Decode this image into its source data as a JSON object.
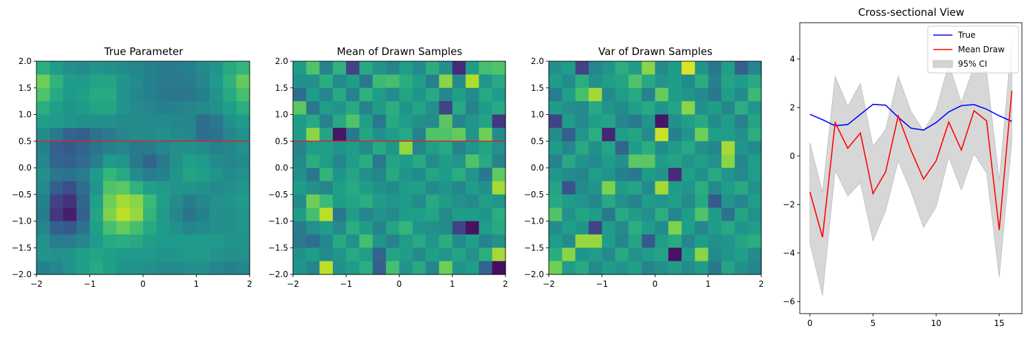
{
  "figure": {
    "panels": [
      {
        "title": "True Parameter"
      },
      {
        "title": "Mean of Drawn Samples"
      },
      {
        "title": "Var of Drawn Samples"
      },
      {
        "title": "Cross-sectional View"
      }
    ]
  },
  "chart_data": [
    {
      "type": "heatmap",
      "title": "True Parameter",
      "xlim": [
        -2,
        2
      ],
      "ylim": [
        -2,
        2
      ],
      "xticks": [
        "−2",
        "−1",
        "0",
        "1",
        "2"
      ],
      "yticks": [
        "−2.0",
        "−1.5",
        "−1.0",
        "−0.5",
        "0.0",
        "0.5",
        "1.0",
        "1.5",
        "2.0"
      ],
      "colormap": "viridis",
      "hline": {
        "y": 0.5,
        "color": "#d62728"
      },
      "grid_rows_top_to_bottom": [
        [
          0.62,
          0.55,
          0.5,
          0.48,
          0.52,
          0.5,
          0.48,
          0.46,
          0.44,
          0.42,
          0.42,
          0.44,
          0.48,
          0.52,
          0.6,
          0.66
        ],
        [
          0.78,
          0.64,
          0.55,
          0.54,
          0.58,
          0.58,
          0.52,
          0.48,
          0.44,
          0.42,
          0.4,
          0.42,
          0.46,
          0.54,
          0.64,
          0.76
        ],
        [
          0.72,
          0.6,
          0.54,
          0.56,
          0.6,
          0.6,
          0.52,
          0.46,
          0.44,
          0.4,
          0.38,
          0.4,
          0.44,
          0.52,
          0.6,
          0.7
        ],
        [
          0.62,
          0.56,
          0.52,
          0.54,
          0.58,
          0.58,
          0.52,
          0.48,
          0.46,
          0.44,
          0.44,
          0.46,
          0.48,
          0.5,
          0.56,
          0.62
        ],
        [
          0.56,
          0.54,
          0.52,
          0.5,
          0.5,
          0.5,
          0.48,
          0.48,
          0.48,
          0.48,
          0.46,
          0.46,
          0.36,
          0.4,
          0.5,
          0.54
        ],
        [
          0.48,
          0.4,
          0.32,
          0.3,
          0.38,
          0.42,
          0.46,
          0.48,
          0.48,
          0.5,
          0.48,
          0.46,
          0.36,
          0.38,
          0.46,
          0.5
        ],
        [
          0.44,
          0.3,
          0.28,
          0.32,
          0.38,
          0.44,
          0.46,
          0.4,
          0.42,
          0.46,
          0.5,
          0.5,
          0.48,
          0.44,
          0.46,
          0.5
        ],
        [
          0.46,
          0.32,
          0.3,
          0.34,
          0.42,
          0.54,
          0.52,
          0.4,
          0.32,
          0.4,
          0.5,
          0.56,
          0.54,
          0.48,
          0.46,
          0.48
        ],
        [
          0.5,
          0.4,
          0.38,
          0.42,
          0.54,
          0.66,
          0.6,
          0.48,
          0.42,
          0.44,
          0.52,
          0.58,
          0.56,
          0.52,
          0.48,
          0.5
        ],
        [
          0.48,
          0.3,
          0.24,
          0.36,
          0.52,
          0.72,
          0.74,
          0.64,
          0.56,
          0.54,
          0.52,
          0.52,
          0.5,
          0.48,
          0.5,
          0.52
        ],
        [
          0.44,
          0.2,
          0.14,
          0.32,
          0.56,
          0.78,
          0.86,
          0.82,
          0.68,
          0.56,
          0.48,
          0.42,
          0.46,
          0.5,
          0.52,
          0.54
        ],
        [
          0.42,
          0.16,
          0.08,
          0.3,
          0.58,
          0.8,
          0.9,
          0.84,
          0.66,
          0.54,
          0.46,
          0.38,
          0.44,
          0.5,
          0.5,
          0.52
        ],
        [
          0.46,
          0.3,
          0.28,
          0.38,
          0.56,
          0.7,
          0.76,
          0.7,
          0.6,
          0.54,
          0.5,
          0.46,
          0.48,
          0.5,
          0.5,
          0.52
        ],
        [
          0.5,
          0.42,
          0.42,
          0.46,
          0.54,
          0.6,
          0.62,
          0.6,
          0.56,
          0.54,
          0.54,
          0.54,
          0.54,
          0.54,
          0.52,
          0.52
        ],
        [
          0.52,
          0.5,
          0.52,
          0.56,
          0.58,
          0.56,
          0.54,
          0.54,
          0.54,
          0.52,
          0.52,
          0.54,
          0.54,
          0.52,
          0.5,
          0.5
        ],
        [
          0.44,
          0.46,
          0.52,
          0.56,
          0.6,
          0.56,
          0.52,
          0.52,
          0.5,
          0.48,
          0.48,
          0.5,
          0.5,
          0.46,
          0.44,
          0.46
        ]
      ]
    },
    {
      "type": "heatmap",
      "title": "Mean of Drawn Samples",
      "xlim": [
        -2,
        2
      ],
      "ylim": [
        -2,
        2
      ],
      "xticks": [
        "−2",
        "−1",
        "0",
        "1",
        "2"
      ],
      "yticks": [
        "−2.0",
        "−1.5",
        "−1.0",
        "−0.5",
        "0.0",
        "0.5",
        "1.0",
        "1.5",
        "2.0"
      ],
      "colormap": "viridis",
      "hline": {
        "y": 0.5,
        "color": "#d62728"
      },
      "grid_rows_top_to_bottom": [
        [
          0.55,
          0.72,
          0.45,
          0.64,
          0.2,
          0.6,
          0.52,
          0.46,
          0.55,
          0.48,
          0.62,
          0.5,
          0.12,
          0.55,
          0.7,
          0.72
        ],
        [
          0.5,
          0.5,
          0.62,
          0.48,
          0.55,
          0.4,
          0.68,
          0.7,
          0.62,
          0.56,
          0.44,
          0.82,
          0.48,
          0.88,
          0.52,
          0.6
        ],
        [
          0.36,
          0.55,
          0.46,
          0.6,
          0.44,
          0.64,
          0.55,
          0.48,
          0.58,
          0.52,
          0.6,
          0.46,
          0.56,
          0.48,
          0.6,
          0.54
        ],
        [
          0.74,
          0.4,
          0.55,
          0.52,
          0.6,
          0.45,
          0.55,
          0.62,
          0.52,
          0.58,
          0.5,
          0.2,
          0.6,
          0.45,
          0.55,
          0.6
        ],
        [
          0.55,
          0.6,
          0.45,
          0.6,
          0.72,
          0.56,
          0.4,
          0.6,
          0.55,
          0.5,
          0.48,
          0.74,
          0.46,
          0.52,
          0.58,
          0.16
        ],
        [
          0.55,
          0.82,
          0.58,
          0.06,
          0.4,
          0.58,
          0.5,
          0.55,
          0.6,
          0.45,
          0.72,
          0.72,
          0.76,
          0.52,
          0.78,
          0.48
        ],
        [
          0.45,
          0.55,
          0.56,
          0.52,
          0.55,
          0.48,
          0.6,
          0.52,
          0.84,
          0.46,
          0.56,
          0.6,
          0.45,
          0.52,
          0.58,
          0.5
        ],
        [
          0.48,
          0.62,
          0.55,
          0.46,
          0.55,
          0.62,
          0.4,
          0.58,
          0.55,
          0.6,
          0.48,
          0.55,
          0.52,
          0.72,
          0.6,
          0.45
        ],
        [
          0.5,
          0.4,
          0.65,
          0.52,
          0.58,
          0.5,
          0.46,
          0.6,
          0.52,
          0.48,
          0.58,
          0.55,
          0.62,
          0.52,
          0.4,
          0.75
        ],
        [
          0.55,
          0.5,
          0.46,
          0.56,
          0.6,
          0.55,
          0.5,
          0.48,
          0.55,
          0.56,
          0.48,
          0.52,
          0.46,
          0.55,
          0.5,
          0.86
        ],
        [
          0.48,
          0.78,
          0.68,
          0.55,
          0.58,
          0.62,
          0.55,
          0.52,
          0.54,
          0.48,
          0.6,
          0.55,
          0.5,
          0.48,
          0.56,
          0.52
        ],
        [
          0.55,
          0.7,
          0.9,
          0.4,
          0.55,
          0.46,
          0.52,
          0.48,
          0.55,
          0.56,
          0.58,
          0.48,
          0.55,
          0.55,
          0.52,
          0.62
        ],
        [
          0.42,
          0.5,
          0.55,
          0.48,
          0.62,
          0.55,
          0.45,
          0.58,
          0.66,
          0.52,
          0.5,
          0.48,
          0.2,
          0.05,
          0.55,
          0.6
        ],
        [
          0.4,
          0.36,
          0.46,
          0.6,
          0.5,
          0.7,
          0.52,
          0.45,
          0.55,
          0.6,
          0.52,
          0.62,
          0.48,
          0.56,
          0.45,
          0.5
        ],
        [
          0.5,
          0.55,
          0.48,
          0.52,
          0.6,
          0.55,
          0.32,
          0.58,
          0.55,
          0.48,
          0.56,
          0.52,
          0.58,
          0.5,
          0.62,
          0.86
        ],
        [
          0.52,
          0.46,
          0.9,
          0.5,
          0.55,
          0.62,
          0.3,
          0.7,
          0.52,
          0.6,
          0.46,
          0.78,
          0.52,
          0.55,
          0.32,
          0.04
        ]
      ]
    },
    {
      "type": "heatmap",
      "title": "Var of Drawn Samples",
      "xlim": [
        -2,
        2
      ],
      "ylim": [
        -2,
        2
      ],
      "xticks": [
        "−2",
        "−1",
        "0",
        "1",
        "2"
      ],
      "yticks": [
        "−2.0",
        "−1.5",
        "−1.0",
        "−0.5",
        "0.0",
        "0.5",
        "1.0",
        "1.5",
        "2.0"
      ],
      "colormap": "viridis",
      "hline": null,
      "grid_rows_top_to_bottom": [
        [
          0.5,
          0.55,
          0.2,
          0.46,
          0.52,
          0.62,
          0.55,
          0.82,
          0.48,
          0.55,
          0.95,
          0.52,
          0.4,
          0.56,
          0.3,
          0.46
        ],
        [
          0.55,
          0.48,
          0.62,
          0.5,
          0.56,
          0.58,
          0.72,
          0.6,
          0.52,
          0.55,
          0.48,
          0.62,
          0.44,
          0.58,
          0.55,
          0.6
        ],
        [
          0.42,
          0.56,
          0.7,
          0.86,
          0.48,
          0.55,
          0.6,
          0.45,
          0.76,
          0.55,
          0.52,
          0.48,
          0.4,
          0.56,
          0.48,
          0.68
        ],
        [
          0.55,
          0.5,
          0.48,
          0.6,
          0.52,
          0.48,
          0.56,
          0.6,
          0.52,
          0.58,
          0.82,
          0.5,
          0.55,
          0.46,
          0.62,
          0.52
        ],
        [
          0.2,
          0.55,
          0.48,
          0.56,
          0.58,
          0.46,
          0.4,
          0.52,
          0.06,
          0.5,
          0.56,
          0.6,
          0.48,
          0.55,
          0.44,
          0.58
        ],
        [
          0.48,
          0.3,
          0.52,
          0.62,
          0.1,
          0.55,
          0.58,
          0.48,
          0.92,
          0.44,
          0.52,
          0.78,
          0.56,
          0.55,
          0.5,
          0.62
        ],
        [
          0.55,
          0.46,
          0.6,
          0.5,
          0.58,
          0.32,
          0.55,
          0.62,
          0.48,
          0.55,
          0.6,
          0.5,
          0.46,
          0.86,
          0.52,
          0.48
        ],
        [
          0.45,
          0.6,
          0.52,
          0.48,
          0.55,
          0.5,
          0.74,
          0.74,
          0.55,
          0.58,
          0.52,
          0.56,
          0.5,
          0.82,
          0.46,
          0.55
        ],
        [
          0.52,
          0.48,
          0.46,
          0.55,
          0.52,
          0.44,
          0.4,
          0.55,
          0.52,
          0.12,
          0.56,
          0.5,
          0.6,
          0.52,
          0.48,
          0.55
        ],
        [
          0.58,
          0.26,
          0.48,
          0.52,
          0.8,
          0.55,
          0.58,
          0.48,
          0.86,
          0.55,
          0.52,
          0.62,
          0.48,
          0.55,
          0.6,
          0.5
        ],
        [
          0.6,
          0.55,
          0.52,
          0.46,
          0.6,
          0.5,
          0.45,
          0.55,
          0.52,
          0.56,
          0.48,
          0.6,
          0.28,
          0.52,
          0.46,
          0.55
        ],
        [
          0.72,
          0.5,
          0.58,
          0.55,
          0.4,
          0.6,
          0.55,
          0.5,
          0.62,
          0.46,
          0.55,
          0.72,
          0.55,
          0.38,
          0.58,
          0.5
        ],
        [
          0.48,
          0.56,
          0.52,
          0.2,
          0.55,
          0.48,
          0.62,
          0.55,
          0.48,
          0.8,
          0.56,
          0.46,
          0.55,
          0.6,
          0.52,
          0.55
        ],
        [
          0.55,
          0.48,
          0.84,
          0.84,
          0.55,
          0.46,
          0.58,
          0.28,
          0.55,
          0.6,
          0.46,
          0.55,
          0.5,
          0.52,
          0.58,
          0.62
        ],
        [
          0.62,
          0.82,
          0.52,
          0.55,
          0.48,
          0.6,
          0.5,
          0.55,
          0.58,
          0.05,
          0.55,
          0.82,
          0.48,
          0.52,
          0.56,
          0.48
        ],
        [
          0.78,
          0.55,
          0.6,
          0.48,
          0.55,
          0.52,
          0.56,
          0.46,
          0.5,
          0.55,
          0.48,
          0.55,
          0.4,
          0.58,
          0.5,
          0.46
        ]
      ]
    },
    {
      "type": "line",
      "title": "Cross-sectional View",
      "x": [
        0,
        1,
        2,
        3,
        4,
        5,
        6,
        7,
        8,
        9,
        10,
        11,
        12,
        13,
        14,
        15,
        16
      ],
      "xlim": [
        -0.8,
        16.8
      ],
      "ylim": [
        -6.5,
        5.5
      ],
      "xticks": [
        "0",
        "5",
        "10",
        "15"
      ],
      "xtick_values": [
        0,
        5,
        10,
        15
      ],
      "yticks": [
        "−6",
        "−4",
        "−2",
        "0",
        "2",
        "4"
      ],
      "ytick_values": [
        -6,
        -4,
        -2,
        0,
        2,
        4
      ],
      "legend_position": "upper right",
      "series": [
        {
          "name": "True",
          "color": "#0000ff",
          "values": [
            1.72,
            1.5,
            1.25,
            1.3,
            1.72,
            2.13,
            2.1,
            1.6,
            1.15,
            1.07,
            1.38,
            1.82,
            2.08,
            2.12,
            1.93,
            1.66,
            1.43
          ]
        },
        {
          "name": "Mean Draw",
          "color": "#ff0000",
          "values": [
            -1.48,
            -3.35,
            1.38,
            0.32,
            0.95,
            -1.55,
            -0.65,
            1.65,
            0.25,
            -0.95,
            -0.2,
            1.4,
            0.25,
            1.87,
            1.45,
            -3.05,
            2.7
          ]
        }
      ],
      "band": {
        "name": "95% CI",
        "color": "#d3d3d3",
        "upper": [
          0.55,
          -1.5,
          3.3,
          2.05,
          3.0,
          0.4,
          1.1,
          3.3,
          1.85,
          1.05,
          1.9,
          3.8,
          2.2,
          3.7,
          3.5,
          -1.0,
          4.8
        ],
        "lower": [
          -3.6,
          -5.75,
          -0.6,
          -1.65,
          -1.1,
          -3.5,
          -2.25,
          -0.2,
          -1.45,
          -2.95,
          -2.1,
          -0.05,
          -1.4,
          0.1,
          -0.7,
          -5.0,
          0.6
        ]
      }
    }
  ]
}
